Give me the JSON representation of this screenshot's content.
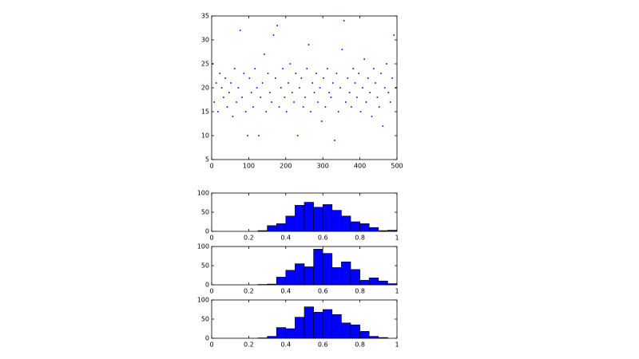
{
  "chart_data": [
    {
      "type": "scatter",
      "color": "#0000ff",
      "x": [
        2,
        7,
        12,
        17,
        22,
        27,
        32,
        37,
        42,
        47,
        52,
        57,
        62,
        67,
        72,
        77,
        82,
        87,
        92,
        97,
        102,
        107,
        112,
        117,
        122,
        127,
        132,
        137,
        142,
        147,
        152,
        157,
        162,
        167,
        172,
        177,
        182,
        187,
        192,
        197,
        202,
        207,
        212,
        217,
        222,
        227,
        232,
        237,
        242,
        247,
        252,
        257,
        262,
        267,
        272,
        277,
        282,
        287,
        292,
        297,
        302,
        307,
        312,
        317,
        322,
        327,
        332,
        337,
        342,
        347,
        352,
        357,
        362,
        367,
        372,
        377,
        382,
        387,
        392,
        397,
        402,
        407,
        412,
        417,
        422,
        427,
        432,
        437,
        442,
        447,
        452,
        457,
        462,
        467,
        472,
        477,
        482,
        487,
        492,
        497
      ],
      "y": [
        25,
        17,
        21,
        15,
        23,
        20,
        18,
        22,
        16,
        19,
        21,
        14,
        24,
        17,
        20,
        32,
        18,
        23,
        15,
        10,
        22,
        19,
        16,
        24,
        20,
        10,
        18,
        21,
        27,
        15,
        23,
        19,
        17,
        31,
        22,
        33,
        16,
        20,
        24,
        18,
        15,
        21,
        25,
        19,
        17,
        23,
        10,
        20,
        22,
        16,
        18,
        24,
        29,
        15,
        21,
        19,
        23,
        17,
        20,
        13,
        22,
        16,
        24,
        19,
        18,
        21,
        9,
        23,
        15,
        20,
        28,
        34,
        17,
        22,
        19,
        16,
        24,
        21,
        18,
        23,
        15,
        20,
        26,
        17,
        22,
        19,
        14,
        24,
        21,
        18,
        16,
        23,
        12,
        20,
        25,
        19,
        17,
        22,
        31,
        20
      ],
      "xlim": [
        0,
        500
      ],
      "xticks": [
        0,
        100,
        200,
        300,
        400,
        500
      ],
      "ylim": [
        5,
        35
      ],
      "yticks": [
        5,
        10,
        15,
        20,
        25,
        30,
        35
      ]
    },
    {
      "type": "histogram",
      "color": "#0000ff",
      "bins": [
        0.2,
        0.25,
        0.3,
        0.35,
        0.4,
        0.45,
        0.5,
        0.55,
        0.6,
        0.65,
        0.7,
        0.75,
        0.8,
        0.85,
        0.9,
        0.95,
        1.0
      ],
      "values": [
        0,
        2,
        15,
        20,
        40,
        68,
        76,
        63,
        70,
        55,
        40,
        25,
        20,
        10,
        2,
        3
      ],
      "xlim": [
        0,
        1
      ],
      "xticks": [
        0,
        0.2,
        0.4,
        0.6,
        0.8,
        1
      ],
      "ylim": [
        0,
        100
      ],
      "yticks": [
        0,
        50,
        100
      ]
    },
    {
      "type": "histogram",
      "color": "#0000ff",
      "bins": [
        0.2,
        0.25,
        0.3,
        0.35,
        0.4,
        0.45,
        0.5,
        0.55,
        0.6,
        0.65,
        0.7,
        0.75,
        0.8,
        0.85,
        0.9,
        0.95,
        1.0
      ],
      "values": [
        0,
        1,
        2,
        20,
        38,
        55,
        47,
        93,
        82,
        45,
        60,
        40,
        12,
        18,
        10,
        3
      ],
      "xlim": [
        0,
        1
      ],
      "xticks": [
        0,
        0.2,
        0.4,
        0.6,
        0.8,
        1
      ],
      "ylim": [
        0,
        100
      ],
      "yticks": [
        0,
        50,
        100
      ]
    },
    {
      "type": "histogram",
      "color": "#0000ff",
      "bins": [
        0.2,
        0.25,
        0.3,
        0.35,
        0.4,
        0.45,
        0.5,
        0.55,
        0.6,
        0.65,
        0.7,
        0.75,
        0.8,
        0.85,
        0.9,
        0.95,
        1.0
      ],
      "values": [
        0,
        1,
        5,
        28,
        25,
        55,
        82,
        68,
        75,
        62,
        40,
        35,
        18,
        5,
        2,
        0
      ],
      "xlim": [
        0,
        1
      ],
      "xticks": [
        0,
        0.2,
        0.4,
        0.6,
        0.8,
        1
      ],
      "ylim": [
        0,
        100
      ],
      "yticks": [
        0,
        50,
        100
      ]
    }
  ]
}
